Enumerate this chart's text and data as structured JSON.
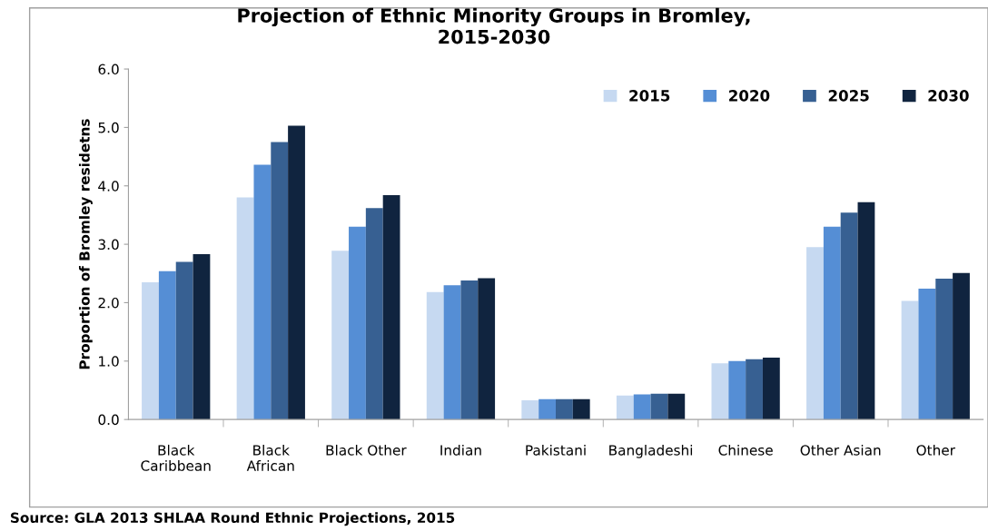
{
  "chart_data": {
    "type": "bar",
    "title": "Projection of Ethnic Minority Groups in Bromley,\n2015-2030",
    "ylabel": "Proportion of Bromley residetns",
    "categories": [
      "Black\nCaribbean",
      "Black\nAfrican",
      "Black Other",
      "Indian",
      "Pakistani",
      "Bangladeshi",
      "Chinese",
      "Other Asian",
      "Other"
    ],
    "series": [
      {
        "name": "2015",
        "color": "#c6d9f1",
        "values": [
          2.35,
          3.8,
          2.89,
          2.18,
          0.33,
          0.41,
          0.96,
          2.95,
          2.03
        ]
      },
      {
        "name": "2020",
        "color": "#558ed5",
        "values": [
          2.54,
          4.36,
          3.3,
          2.3,
          0.35,
          0.43,
          1.0,
          3.3,
          2.24
        ]
      },
      {
        "name": "2025",
        "color": "#376092",
        "values": [
          2.7,
          4.75,
          3.62,
          2.38,
          0.35,
          0.44,
          1.03,
          3.54,
          2.41
        ]
      },
      {
        "name": "2030",
        "color": "#10243f",
        "values": [
          2.83,
          5.03,
          3.84,
          2.42,
          0.35,
          0.44,
          1.06,
          3.72,
          2.51
        ]
      }
    ],
    "ylim": [
      0,
      6
    ],
    "yticks": [
      {
        "value": 0,
        "label": "0.0"
      },
      {
        "value": 1,
        "label": "1.0"
      },
      {
        "value": 2,
        "label": "2.0"
      },
      {
        "value": 3,
        "label": "3.0"
      },
      {
        "value": 4,
        "label": "4.0"
      },
      {
        "value": 5,
        "label": "5.0"
      },
      {
        "value": 6,
        "label": "6.0"
      }
    ],
    "grid": false,
    "legend": "top right",
    "annotations": [
      "Source: GLA 2013 SHLAA Round Ethnic Projections, 2015"
    ]
  }
}
